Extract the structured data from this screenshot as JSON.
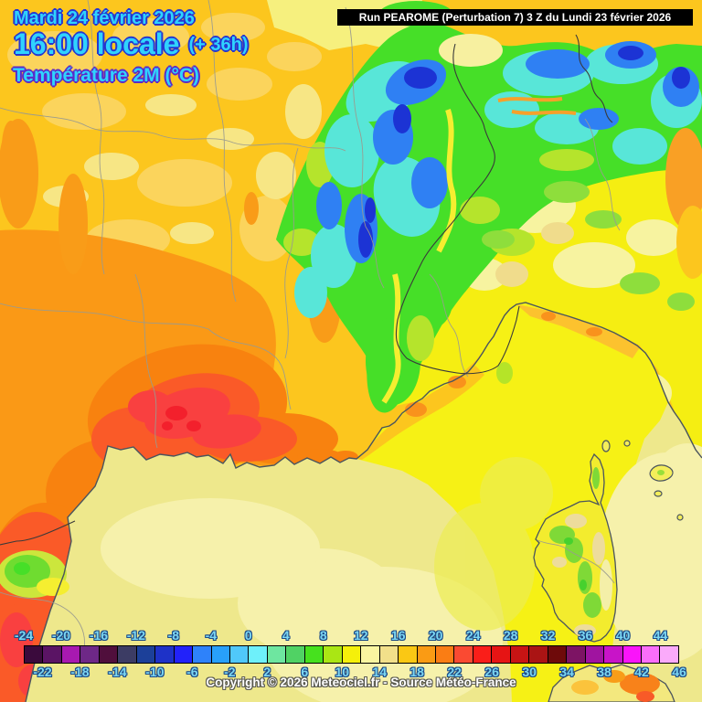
{
  "header": {
    "date": "Mardi 24 février 2026",
    "time": "16:00 locale",
    "time_offset": "(+ 36h)",
    "parameter": "Température 2M (°C)",
    "run_info": "Run PEAROME (Perturbation 7) 3 Z du Lundi 23 février 2026"
  },
  "footer": {
    "copyright": "Copyright © 2026 Meteociel.fr - Source Météo-France"
  },
  "legend": {
    "unit": "°C",
    "min": -24,
    "max": 46,
    "step": 2,
    "top_labels": [
      "-24",
      "-20",
      "-16",
      "-12",
      "-8",
      "-4",
      "0",
      "4",
      "8",
      "12",
      "16",
      "20",
      "24",
      "28",
      "32",
      "36",
      "40",
      "44"
    ],
    "bottom_labels": [
      "-22",
      "-18",
      "-14",
      "-10",
      "-6",
      "-2",
      "2",
      "6",
      "10",
      "14",
      "18",
      "22",
      "26",
      "30",
      "34",
      "38",
      "42",
      "46"
    ],
    "colors": [
      "#3a0a3c",
      "#5a1464",
      "#a819b0",
      "#6e2887",
      "#500f3c",
      "#3c3c64",
      "#1c4099",
      "#1e32c8",
      "#2222fa",
      "#2e82fa",
      "#28a0fa",
      "#50c8fa",
      "#6ef0fa",
      "#6ee6a0",
      "#50d264",
      "#46e11e",
      "#aae614",
      "#f5f00a",
      "#faf5a0",
      "#f2e08a",
      "#fac814",
      "#fa9b14",
      "#fa7d14",
      "#fa4a32",
      "#fa1e19",
      "#e61414",
      "#c81414",
      "#aa1414",
      "#6e0a0a",
      "#7d1464",
      "#a014a0",
      "#c814c8",
      "#fa14fa",
      "#fa6efa",
      "#faaafa"
    ]
  },
  "colors": {
    "header_text": "#2fd3fe",
    "header_outline_blue": "#2636cf",
    "header_outline_purple": "#5a2ac8",
    "legend_label": "#7cd7f2",
    "run_box_bg": "#000000",
    "run_box_text": "#ffffff"
  }
}
